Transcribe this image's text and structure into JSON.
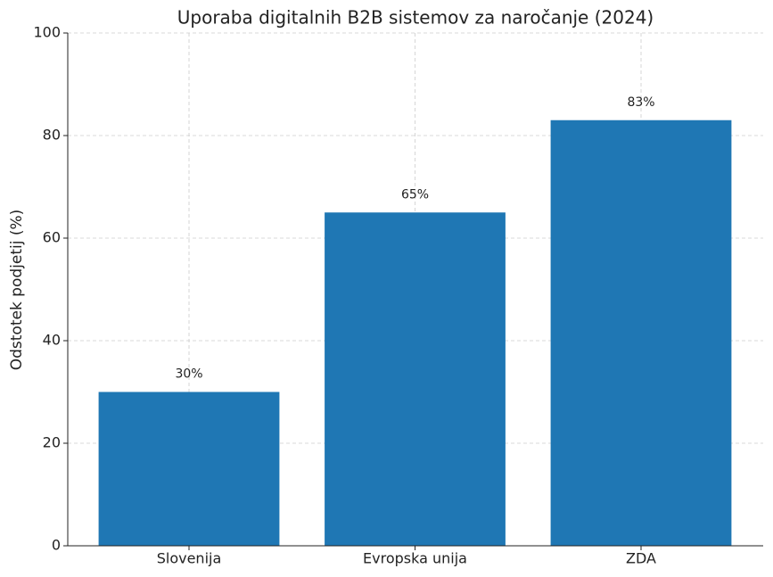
{
  "chart_data": {
    "type": "bar",
    "title": "Uporaba digitalnih B2B sistemov za naročanje (2024)",
    "y_label": "Odstotek podjetij (%)",
    "categories": [
      "Slovenija",
      "Evropska unija",
      "ZDA"
    ],
    "values": [
      30,
      65,
      83
    ],
    "value_labels": [
      "30%",
      "65%",
      "83%"
    ],
    "color": "#1f77b4",
    "ylim": [
      0,
      100
    ],
    "yticks": [
      0,
      20,
      40,
      60,
      80,
      100
    ],
    "grid": true
  }
}
